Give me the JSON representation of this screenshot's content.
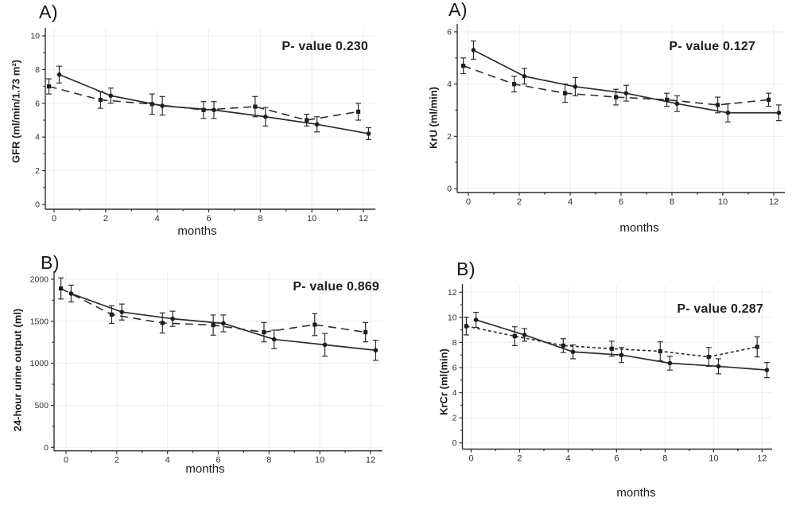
{
  "figure": {
    "background": "#ffffff",
    "ink_color": "#2d2d2d",
    "marker_color": "#1d1d1d",
    "grid_color": "#ededed"
  },
  "chart_data": [
    {
      "id": "gfr",
      "type": "line",
      "panel_label": "A)",
      "annotation": "P- value 0.230",
      "xlabel": "months",
      "ylabel": "GFR (ml/min/1.73 m²)",
      "x": [
        0,
        2,
        4,
        6,
        8,
        10,
        12
      ],
      "xlim": [
        -0.5,
        12.5
      ],
      "xticks": [
        0,
        2,
        4,
        6,
        8,
        10,
        12
      ],
      "xticks_minor": [
        1,
        3,
        5,
        7,
        9,
        11
      ],
      "ylim": [
        0,
        10
      ],
      "yticks": [
        0,
        2,
        4,
        6,
        8,
        10
      ],
      "yticks_minor": [
        1,
        3,
        5,
        7,
        9
      ],
      "grid": true,
      "legend": "none",
      "series": [
        {
          "name": "solid",
          "line_style": "solid",
          "marker": "circle",
          "x_offset": 0.2,
          "values": [
            7.7,
            6.45,
            5.85,
            5.6,
            5.2,
            4.75,
            4.2
          ],
          "errors": [
            0.5,
            0.45,
            0.55,
            0.5,
            0.55,
            0.45,
            0.35
          ]
        },
        {
          "name": "dashed",
          "line_style": "long-dash",
          "marker": "square",
          "x_offset": -0.2,
          "values": [
            7.0,
            6.2,
            5.95,
            5.6,
            5.8,
            5.0,
            5.5
          ],
          "errors": [
            0.45,
            0.5,
            0.6,
            0.5,
            0.6,
            0.35,
            0.5
          ]
        }
      ]
    },
    {
      "id": "kru",
      "type": "line",
      "panel_label": "A)",
      "annotation": "P- value 0.127",
      "xlabel": "months",
      "ylabel": "KrU (ml/min)",
      "x": [
        0,
        2,
        4,
        6,
        8,
        10,
        12
      ],
      "xlim": [
        -0.5,
        12.5
      ],
      "xticks": [
        0,
        2,
        4,
        6,
        8,
        10,
        12
      ],
      "xticks_minor": [
        1,
        3,
        5,
        7,
        9,
        11
      ],
      "ylim": [
        0,
        6
      ],
      "yticks": [
        0,
        2,
        4,
        6
      ],
      "yticks_minor": [
        1,
        3,
        5
      ],
      "grid": true,
      "legend": "none",
      "series": [
        {
          "name": "solid",
          "line_style": "solid",
          "marker": "circle",
          "x_offset": 0.2,
          "values": [
            5.3,
            4.3,
            3.9,
            3.65,
            3.25,
            2.9,
            2.9
          ],
          "errors": [
            0.35,
            0.3,
            0.35,
            0.3,
            0.3,
            0.35,
            0.3
          ]
        },
        {
          "name": "dashed",
          "line_style": "long-dash",
          "marker": "square",
          "x_offset": -0.2,
          "values": [
            4.7,
            4.0,
            3.65,
            3.5,
            3.4,
            3.2,
            3.4
          ],
          "errors": [
            0.3,
            0.3,
            0.35,
            0.3,
            0.25,
            0.3,
            0.25
          ]
        }
      ]
    },
    {
      "id": "urine-output",
      "type": "line",
      "panel_label": "B)",
      "annotation": "P- value 0.869",
      "xlabel": "months",
      "ylabel": "24-hour urine output (ml)",
      "x": [
        0,
        2,
        4,
        6,
        8,
        10,
        12
      ],
      "xlim": [
        -0.5,
        12.5
      ],
      "xticks": [
        0,
        2,
        4,
        6,
        8,
        10,
        12
      ],
      "xticks_minor": [
        1,
        3,
        5,
        7,
        9,
        11
      ],
      "ylim": [
        0,
        2000
      ],
      "yticks": [
        0,
        500,
        1000,
        1500,
        2000
      ],
      "yticks_minor": [
        250,
        750,
        1250,
        1750
      ],
      "grid": true,
      "legend": "none",
      "series": [
        {
          "name": "solid",
          "line_style": "solid",
          "marker": "circle",
          "x_offset": 0.2,
          "values": [
            1830,
            1610,
            1530,
            1475,
            1285,
            1220,
            1155
          ],
          "errors": [
            100,
            95,
            90,
            100,
            110,
            135,
            120
          ]
        },
        {
          "name": "dashed",
          "line_style": "long-dash",
          "marker": "square",
          "x_offset": -0.2,
          "values": [
            1890,
            1580,
            1480,
            1455,
            1370,
            1460,
            1370
          ],
          "errors": [
            125,
            105,
            120,
            120,
            115,
            130,
            115
          ]
        }
      ]
    },
    {
      "id": "krcr",
      "type": "line",
      "panel_label": "B)",
      "annotation": "P- value 0.287",
      "xlabel": "months",
      "ylabel": "KrCr (ml(min)",
      "x": [
        0,
        2,
        4,
        6,
        8,
        10,
        12
      ],
      "xlim": [
        -0.5,
        12.5
      ],
      "xticks": [
        0,
        2,
        4,
        6,
        8,
        10,
        12
      ],
      "xticks_minor": [
        1,
        3,
        5,
        7,
        9,
        11
      ],
      "ylim": [
        0,
        12
      ],
      "yticks": [
        0,
        2,
        4,
        6,
        8,
        10,
        12
      ],
      "yticks_minor": [
        1,
        3,
        5,
        7,
        9,
        11
      ],
      "grid": true,
      "legend": "none",
      "series": [
        {
          "name": "solid",
          "line_style": "solid",
          "marker": "circle",
          "x_offset": 0.2,
          "values": [
            9.8,
            8.6,
            7.25,
            7.0,
            6.35,
            6.1,
            5.8
          ],
          "errors": [
            0.6,
            0.5,
            0.55,
            0.6,
            0.55,
            0.6,
            0.6
          ]
        },
        {
          "name": "dashed",
          "line_style": "short-dash",
          "marker": "square",
          "x_offset": -0.2,
          "values": [
            9.3,
            8.5,
            7.75,
            7.5,
            7.3,
            6.85,
            7.65
          ],
          "errors": [
            0.7,
            0.75,
            0.55,
            0.6,
            0.75,
            0.75,
            0.8
          ]
        }
      ]
    }
  ]
}
